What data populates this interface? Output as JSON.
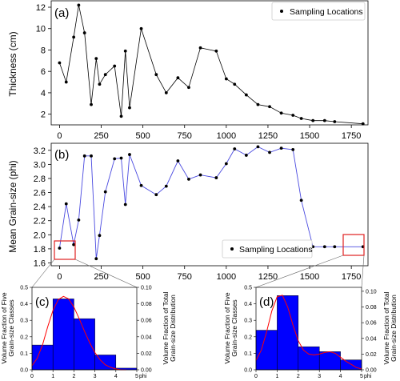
{
  "chart_data": [
    {
      "panel": "(a)",
      "type": "line",
      "xlabel": "",
      "ylabel": "Thickness (cm)",
      "ylim": [
        1,
        12.6
      ],
      "xlim": [
        -50,
        1850
      ],
      "xticks": [
        "0",
        "250",
        "500",
        "750",
        "1000",
        "1250",
        "1500",
        "1750"
      ],
      "yticks": [
        "2",
        "4",
        "6",
        "8",
        "10",
        "12"
      ],
      "legend": "Sampling Locations",
      "legend_position": "top-right",
      "line_color": "#000000",
      "x": [
        0,
        40,
        85,
        115,
        150,
        190,
        220,
        240,
        275,
        330,
        370,
        395,
        420,
        490,
        580,
        640,
        710,
        775,
        845,
        940,
        1000,
        1050,
        1120,
        1190,
        1260,
        1330,
        1400,
        1450,
        1520,
        1590,
        1650,
        1820
      ],
      "y": [
        6.8,
        5.0,
        9.2,
        12.2,
        9.6,
        2.9,
        7.2,
        4.8,
        5.7,
        6.5,
        1.8,
        7.9,
        2.6,
        10.0,
        5.7,
        4.0,
        5.4,
        4.5,
        8.2,
        7.9,
        5.3,
        4.8,
        3.8,
        2.9,
        2.7,
        2.1,
        1.9,
        1.6,
        1.4,
        1.4,
        1.3,
        1.1
      ]
    },
    {
      "panel": "(b)",
      "type": "line",
      "xlabel": "",
      "ylabel": "Mean Grain-size (phi)",
      "ylim": [
        1.56,
        3.3
      ],
      "xlim": [
        -50,
        1850
      ],
      "xticks": [
        "0",
        "250",
        "500",
        "750",
        "1000",
        "1250",
        "1500",
        "1750"
      ],
      "yticks": [
        "1.6",
        "1.8",
        "2.0",
        "2.2",
        "2.4",
        "2.6",
        "2.8",
        "3.0",
        "3.2"
      ],
      "legend": "Sampling Locations",
      "legend_position": "bottom-right",
      "line_color": "#4a4ae0",
      "x": [
        0,
        40,
        85,
        115,
        150,
        190,
        220,
        240,
        275,
        330,
        370,
        395,
        420,
        490,
        580,
        640,
        710,
        775,
        845,
        940,
        1000,
        1050,
        1120,
        1190,
        1260,
        1330,
        1400,
        1450,
        1520,
        1590,
        1650,
        1820
      ],
      "y": [
        1.81,
        2.44,
        1.86,
        2.21,
        3.12,
        3.12,
        1.66,
        1.99,
        2.61,
        3.08,
        3.09,
        2.43,
        3.14,
        2.7,
        2.57,
        2.69,
        3.05,
        2.79,
        2.85,
        2.81,
        3.01,
        3.22,
        3.13,
        3.25,
        3.17,
        3.23,
        3.21,
        2.49,
        1.83,
        1.83,
        1.83,
        1.83
      ]
    },
    {
      "panel": "(c)",
      "type": "bar",
      "xlabel": "phi",
      "ylabel": "Volume Fraction of Five\nGrain-size Classes",
      "ylabel_right": "Volume Fraction of Total\nGrain-size Distribution",
      "xlim": [
        0,
        5
      ],
      "ylim": [
        0,
        0.5
      ],
      "ylim_right": [
        0,
        0.1
      ],
      "xticks": [
        "0",
        "1",
        "2",
        "3",
        "4",
        "5"
      ],
      "yticks": [
        "0.0",
        "0.1",
        "0.2",
        "0.3",
        "0.4",
        "0.5"
      ],
      "yticks_right": [
        "0.00",
        "0.02",
        "0.04",
        "0.06",
        "0.08",
        "0.10"
      ],
      "bar_color": "#0000ff",
      "curve_color": "#ff0000",
      "categories": [
        "0-1",
        "1-2",
        "2-3",
        "3-4",
        "4-5"
      ],
      "values": [
        0.15,
        0.43,
        0.31,
        0.09,
        0.01
      ],
      "curve_x": [
        0,
        0.25,
        0.5,
        0.75,
        1.0,
        1.25,
        1.5,
        1.75,
        2.0,
        2.25,
        2.5,
        2.75,
        3.0,
        3.25,
        3.5,
        3.75,
        4.0,
        4.25,
        4.5
      ],
      "curve_y": [
        0.005,
        0.014,
        0.03,
        0.052,
        0.072,
        0.085,
        0.089,
        0.086,
        0.076,
        0.062,
        0.047,
        0.033,
        0.021,
        0.012,
        0.006,
        0.003,
        0.001,
        0.0,
        0.0
      ]
    },
    {
      "panel": "(d)",
      "type": "bar",
      "xlabel": "phi",
      "ylabel": "Volume Fraction of Five\nGrain-size Classes",
      "ylabel_right": "Volume Fraction of Total\nGrain-size Distribution",
      "xlim": [
        0,
        5
      ],
      "ylim": [
        0,
        0.5
      ],
      "ylim_right": [
        0,
        0.105
      ],
      "xticks": [
        "0",
        "1",
        "2",
        "3",
        "4",
        "5"
      ],
      "yticks": [
        "0.0",
        "0.1",
        "0.2",
        "0.3",
        "0.4",
        "0.5"
      ],
      "yticks_right": [
        "0.00",
        "0.02",
        "0.04",
        "0.06",
        "0.08",
        "0.10"
      ],
      "bar_color": "#0000ff",
      "curve_color": "#ff0000",
      "categories": [
        "0-1",
        "1-2",
        "2-3",
        "3-4",
        "4-5"
      ],
      "values": [
        0.24,
        0.45,
        0.14,
        0.11,
        0.06
      ],
      "curve_x": [
        0,
        0.25,
        0.5,
        0.75,
        1.0,
        1.25,
        1.5,
        1.75,
        2.0,
        2.25,
        2.5,
        2.75,
        3.0,
        3.25,
        3.5,
        3.75,
        4.0,
        4.25,
        4.5,
        4.75,
        5.0
      ],
      "curve_y": [
        0.012,
        0.025,
        0.048,
        0.075,
        0.093,
        0.095,
        0.08,
        0.057,
        0.037,
        0.025,
        0.02,
        0.019,
        0.02,
        0.022,
        0.023,
        0.021,
        0.016,
        0.011,
        0.007,
        0.003,
        0.001
      ]
    }
  ]
}
